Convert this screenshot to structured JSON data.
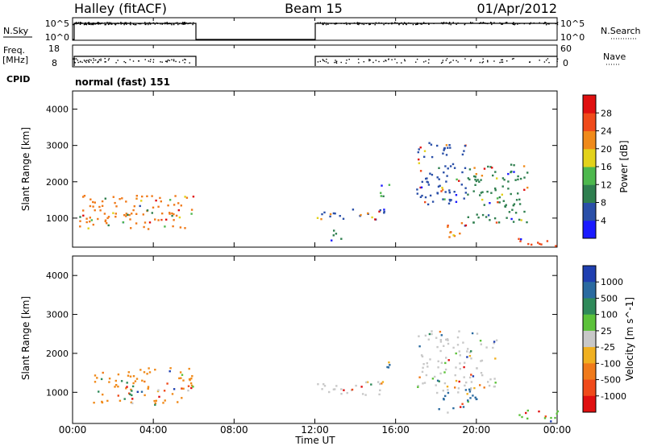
{
  "header": {
    "station": "Halley (fitACF)",
    "beam": "Beam 15",
    "date": "01/Apr/2012"
  },
  "strips": {
    "nsky_label": "N.Sky",
    "nsky_ticks": [
      "10^5",
      "10^0"
    ],
    "nsearch_label": "N.Search",
    "nsearch_ticks": [
      "10^5",
      "10^0"
    ],
    "freq_label_top": "Freq.",
    "freq_label_bottom": "[MHz]",
    "freq_ticks": [
      "18",
      "8"
    ],
    "nave_label": "Nave",
    "nave_ticks": [
      "60",
      "0"
    ],
    "cpid_label": "CPID",
    "cpid_value": "normal (fast) 151"
  },
  "chart_data": [
    {
      "type": "heatmap",
      "name": "power-panel",
      "ylabel": "Slant Range [km]",
      "ylim": [
        200,
        4500
      ],
      "yticks": [
        "1000",
        "2000",
        "3000",
        "4000"
      ],
      "xlim": [
        0,
        24
      ],
      "colorbar": {
        "label": "Power [dB]",
        "ticks": [
          "28",
          "24",
          "20",
          "16",
          "12",
          "8",
          "4"
        ],
        "colors": [
          "#1a1aff",
          "#2a4fa8",
          "#2f7f4f",
          "#4db84d",
          "#e3d21a",
          "#f08a1a",
          "#f04a1a",
          "#e01010"
        ]
      },
      "coverage_hours": [
        [
          0,
          6
        ],
        [
          12,
          24
        ]
      ],
      "echo_regions": [
        {
          "t": [
            0.3,
            6.0
          ],
          "r": [
            700,
            1650
          ],
          "level": "strong",
          "color": "#f07a1a"
        },
        {
          "t": [
            12.0,
            15.5
          ],
          "r": [
            950,
            1300
          ],
          "level": "weak",
          "color": "#2a4fa8"
        },
        {
          "t": [
            12.0,
            13.5
          ],
          "r": [
            400,
            700
          ],
          "level": "moderate",
          "color": "#2f7f4f"
        },
        {
          "t": [
            15.2,
            15.8
          ],
          "r": [
            1600,
            2000
          ],
          "level": "moderate",
          "color": "#4db84d"
        },
        {
          "t": [
            17.0,
            19.5
          ],
          "r": [
            1400,
            3100
          ],
          "level": "weak",
          "color": "#2a4fa8"
        },
        {
          "t": [
            18.5,
            19.5
          ],
          "r": [
            400,
            900
          ],
          "level": "strong",
          "color": "#f07a1a"
        },
        {
          "t": [
            19.5,
            22.5
          ],
          "r": [
            900,
            2600
          ],
          "level": "moderate",
          "color": "#2f7f4f"
        },
        {
          "t": [
            22.0,
            24.0
          ],
          "r": [
            250,
            550
          ],
          "level": "strong",
          "color": "#f04a1a"
        }
      ]
    },
    {
      "type": "heatmap",
      "name": "velocity-panel",
      "ylabel": "Slant Range [km]",
      "ylim": [
        200,
        4500
      ],
      "yticks": [
        "1000",
        "2000",
        "3000",
        "4000"
      ],
      "xlim": [
        0,
        24
      ],
      "xticks": [
        "00:00",
        "04:00",
        "08:00",
        "12:00",
        "16:00",
        "20:00",
        "00:00"
      ],
      "xlabel": "Time UT",
      "colorbar": {
        "label": "Velocity [m s^-1]",
        "ticks": [
          "1000",
          "500",
          "100",
          "25",
          "-25",
          "-100",
          "-500",
          "-1000"
        ],
        "colors": [
          "#1f3fb0",
          "#2a6aa0",
          "#2f8a5a",
          "#5cc23a",
          "#c8c8c8",
          "#f0b020",
          "#f07a1a",
          "#f04a1a",
          "#e01010"
        ]
      },
      "coverage_hours": [
        [
          0,
          6
        ],
        [
          12,
          24
        ]
      ],
      "echo_regions": [
        {
          "t": [
            1.0,
            6.0
          ],
          "r": [
            700,
            1650
          ],
          "level": "away",
          "color": "#f08a1a"
        },
        {
          "t": [
            2.3,
            3.2
          ],
          "r": [
            800,
            1400
          ],
          "level": "toward",
          "color": "#2f8a5a"
        },
        {
          "t": [
            12.0,
            15.5
          ],
          "r": [
            950,
            1300
          ],
          "level": "ground",
          "color": "#c8c8c8"
        },
        {
          "t": [
            15.2,
            15.8
          ],
          "r": [
            1600,
            2000
          ],
          "level": "toward",
          "color": "#2a6aa0"
        },
        {
          "t": [
            17.0,
            21.0
          ],
          "r": [
            1000,
            2600
          ],
          "level": "ground",
          "color": "#c8c8c8"
        },
        {
          "t": [
            18.0,
            20.0
          ],
          "r": [
            500,
            1100
          ],
          "level": "toward",
          "color": "#2a6aa0"
        },
        {
          "t": [
            22.0,
            24.0
          ],
          "r": [
            250,
            600
          ],
          "level": "mixed",
          "color": "#5cc23a"
        }
      ]
    }
  ]
}
